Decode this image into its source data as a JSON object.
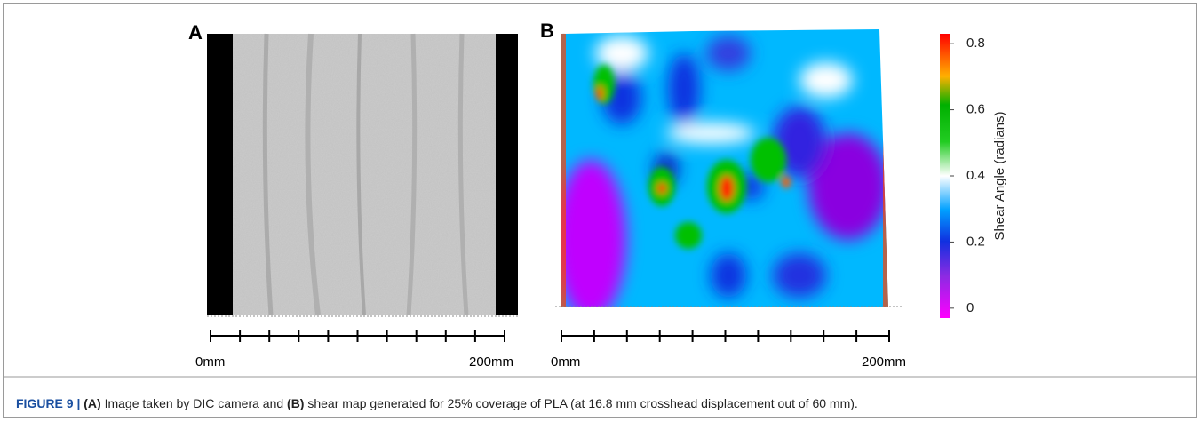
{
  "panels": {
    "a_label": "A",
    "b_label": "B"
  },
  "scale_a": {
    "start": "0mm",
    "end": "200mm"
  },
  "scale_b": {
    "start": "0mm",
    "end": "200mm"
  },
  "colorbar": {
    "label": "Shear Angle (radians)",
    "lim": [
      -0.03,
      0.83
    ],
    "ticks": [
      0,
      0.2,
      0.4,
      0.6,
      0.8
    ]
  },
  "caption": {
    "figure": "FIGURE 9 |",
    "a": "(A)",
    "text_a": "Image taken by DIC camera and",
    "b": "(B)",
    "text_b": "shear map generated for 25% coverage of PLA (at 16.8 mm crosshead displacement out of 60 mm)."
  }
}
